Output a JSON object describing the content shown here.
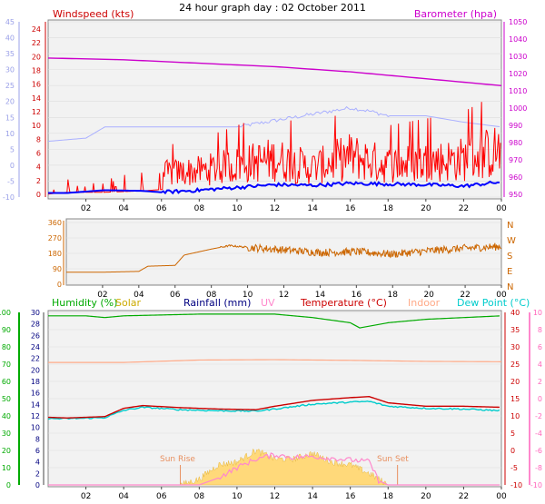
{
  "title": "24 hour graph day : 02 October 2011",
  "x_ticks": [
    "02",
    "04",
    "06",
    "08",
    "10",
    "12",
    "14",
    "16",
    "18",
    "20",
    "22",
    "00"
  ],
  "chart_data": [
    {
      "type": "line",
      "name": "wind-baro",
      "legend_left": "Windspeed (kts)",
      "legend_right": "Barometer (hpa)",
      "y_left_ticks": [
        "-10",
        "-5",
        "0",
        "5",
        "10",
        "15",
        "20",
        "25",
        "30",
        "35",
        "40",
        "45"
      ],
      "y_mid_ticks": [
        "0",
        "2",
        "4",
        "6",
        "8",
        "10",
        "12",
        "14",
        "16",
        "18",
        "20",
        "22",
        "24"
      ],
      "y_right_ticks": [
        "950",
        "960",
        "970",
        "980",
        "990",
        "1000",
        "1010",
        "1020",
        "1030",
        "1040",
        "1050"
      ],
      "colors": {
        "gust": "#ff0000",
        "avg": "#0000ff",
        "baro": "#cc00cc",
        "extra": "#aab0ff",
        "left_axis": "#9aa0e8",
        "mid_axis": "#cc0000"
      },
      "baro_hpa": {
        "x_hours": [
          0,
          4,
          8,
          12,
          16,
          20,
          24
        ],
        "y": [
          1029,
          1028,
          1026,
          1024,
          1021,
          1017,
          1013
        ]
      },
      "extra_series_left_units": {
        "x_hours": [
          0,
          2,
          3,
          8,
          10,
          12,
          14,
          16,
          17,
          18,
          20,
          22,
          24
        ],
        "y": [
          7.5,
          8.5,
          12.0,
          12.0,
          12.0,
          14.0,
          16.0,
          18.0,
          17.0,
          15.5,
          15.5,
          13.5,
          12.0
        ]
      },
      "avg_kts": {
        "x_hours": [
          0,
          1,
          3,
          5,
          6,
          8,
          10,
          12,
          14,
          16,
          18,
          20,
          22,
          24
        ],
        "y": [
          0.2,
          0.2,
          0.6,
          0.5,
          0.3,
          0.6,
          1.0,
          1.4,
          1.3,
          1.6,
          1.5,
          1.4,
          1.2,
          1.8
        ]
      },
      "gust_kts": {
        "x_hours": [
          0,
          1,
          3,
          5,
          6,
          8,
          10,
          12,
          14,
          16,
          18,
          20,
          22,
          24
        ],
        "y": [
          0.2,
          1.5,
          1.5,
          2.5,
          3.5,
          4.0,
          5.0,
          6.0,
          4.5,
          6.5,
          5.0,
          5.5,
          6.0,
          7.5
        ]
      }
    },
    {
      "type": "line",
      "name": "wind-direction",
      "y_ticks": [
        "0",
        "90",
        "180",
        "270",
        "360"
      ],
      "compass_labels": [
        "N",
        "W",
        "S",
        "E",
        "N"
      ],
      "color": "#cc6600",
      "dir_deg": {
        "x_hours": [
          0,
          2,
          4,
          4.5,
          6,
          6.5,
          8,
          9,
          10,
          12,
          14,
          16,
          18,
          20,
          22,
          24
        ],
        "y": [
          70,
          70,
          75,
          105,
          110,
          170,
          205,
          225,
          215,
          200,
          185,
          190,
          175,
          195,
          210,
          220
        ]
      }
    },
    {
      "type": "line",
      "name": "temp-hum",
      "legend": {
        "humidity": "Humidity (%)",
        "solar": "Solar",
        "rainfall": "Rainfall (mm)",
        "uv": "UV",
        "temperature": "Temperature (°C)",
        "indoor": "Indoor",
        "dewpoint": "Dew Point (°C)"
      },
      "annotations": {
        "sunrise": "Sun Rise",
        "sunset": "Sun Set"
      },
      "y_humidity_ticks": [
        "0",
        "10",
        "20",
        "30",
        "40",
        "50",
        "60",
        "70",
        "80",
        "90",
        "100"
      ],
      "y_rain_ticks": [
        "0",
        "2",
        "4",
        "6",
        "8",
        "10",
        "12",
        "14",
        "16",
        "18",
        "20",
        "22",
        "24",
        "26",
        "28",
        "30"
      ],
      "y_temp_ticks": [
        "-10",
        "-5",
        "0",
        "5",
        "10",
        "15",
        "20",
        "25",
        "30",
        "35",
        "40"
      ],
      "y_uv_ticks": [
        "-10",
        "-8",
        "-6",
        "-4",
        "-2",
        "0",
        "2",
        "4",
        "6",
        "8",
        "10"
      ],
      "colors": {
        "humidity": "#00aa00",
        "solar": "#ccaa00",
        "rainfall": "#000080",
        "uv": "#ff88cc",
        "temperature": "#cc0000",
        "indoor": "#ffaa88",
        "dewpoint": "#00cccc"
      },
      "humidity_pct": {
        "x_hours": [
          0,
          2,
          3,
          4,
          8,
          12,
          14,
          16,
          16.5,
          17,
          18,
          20,
          22,
          24
        ],
        "y": [
          98,
          98,
          97,
          98,
          99,
          99,
          97,
          94,
          91,
          92,
          94,
          96,
          97,
          98
        ]
      },
      "indoor_c": {
        "x_hours": [
          0,
          4,
          8,
          12,
          16,
          20,
          24
        ],
        "y": [
          25.5,
          25.5,
          26.2,
          26.3,
          26.1,
          25.8,
          25.7
        ]
      },
      "temperature_c": {
        "x_hours": [
          0,
          1,
          3,
          4,
          5,
          7,
          9,
          11,
          12,
          14,
          16,
          17,
          18,
          20,
          22,
          24
        ],
        "y": [
          9.6,
          9.4,
          9.8,
          12.2,
          13.0,
          12.4,
          12.0,
          11.8,
          12.8,
          14.5,
          15.3,
          15.6,
          13.8,
          12.8,
          12.8,
          12.5
        ]
      },
      "dewpoint_c": {
        "x_hours": [
          0,
          1,
          3,
          4,
          5,
          7,
          9,
          11,
          12,
          14,
          16,
          17,
          18,
          20,
          22,
          24
        ],
        "y": [
          9.2,
          9.2,
          9.5,
          11.6,
          12.5,
          11.8,
          11.5,
          11.4,
          12.0,
          13.4,
          14.0,
          14.2,
          12.8,
          12.2,
          12.0,
          11.5
        ]
      },
      "solar_pct_of_axis": {
        "x_hours": [
          0,
          7,
          8,
          9,
          10,
          11,
          12,
          13,
          14,
          15,
          16,
          17,
          18,
          24
        ],
        "y": [
          0,
          0,
          1.0,
          3.5,
          4.0,
          6.0,
          4.5,
          4.5,
          5.5,
          4.0,
          3.5,
          2.0,
          0,
          0
        ]
      },
      "uv_index": {
        "x_hours": [
          0,
          8,
          9,
          10,
          11,
          12,
          13,
          14,
          15,
          16,
          17,
          17.5,
          18,
          24
        ],
        "y": [
          -10,
          -10,
          -9.2,
          -8.0,
          -7.0,
          -6.5,
          -6.8,
          -6.7,
          -6.9,
          -7.1,
          -7.3,
          -9.5,
          -10,
          -10
        ]
      }
    }
  ]
}
